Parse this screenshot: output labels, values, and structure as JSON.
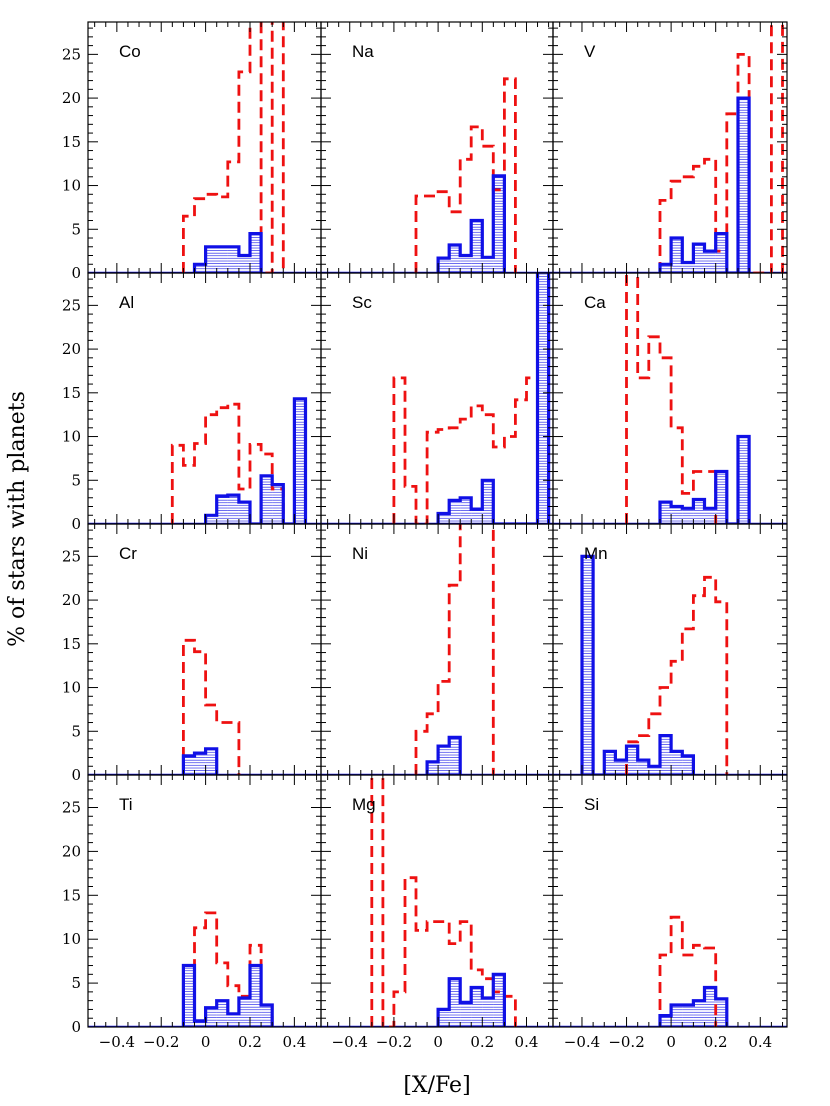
{
  "figure": {
    "xlabel": "[X/Fe]",
    "ylabel": "% of stars with planets",
    "ylim": [
      0,
      28.7
    ],
    "xlim": [
      -0.53,
      0.52
    ],
    "yticks": [
      0,
      5,
      10,
      15,
      20,
      25
    ],
    "xticks": [
      -0.4,
      -0.2,
      0,
      0.2,
      0.4
    ],
    "xtick_labels": [
      "−0.4",
      "−0.2",
      "0",
      "0.2",
      "0.4"
    ],
    "colors": {
      "planets_solid": "#1010e6",
      "planets_dashed": "#ee1111",
      "axes": "#000000"
    }
  },
  "chart_data": [
    {
      "type": "histogram",
      "label": "Co",
      "solid_bins": [
        [
          -0.05,
          0.0,
          1.0
        ],
        [
          0.0,
          0.1,
          3.0
        ],
        [
          0.1,
          0.15,
          3.0
        ],
        [
          0.15,
          0.2,
          2.0
        ],
        [
          0.2,
          0.25,
          4.5
        ]
      ],
      "dashed_bins": [
        [
          -0.1,
          -0.05,
          6.5
        ],
        [
          -0.05,
          0.0,
          8.5
        ],
        [
          0.0,
          0.05,
          9.0
        ],
        [
          0.05,
          0.1,
          8.7
        ],
        [
          0.1,
          0.15,
          12.7
        ],
        [
          0.15,
          0.2,
          23.0
        ],
        [
          0.2,
          0.25,
          30.0
        ],
        [
          0.3,
          0.35,
          30.0
        ]
      ]
    },
    {
      "type": "histogram",
      "label": "Na",
      "solid_bins": [
        [
          0.0,
          0.05,
          1.7
        ],
        [
          0.05,
          0.1,
          3.2
        ],
        [
          0.1,
          0.15,
          2.0
        ],
        [
          0.15,
          0.2,
          6.0
        ],
        [
          0.2,
          0.25,
          1.8
        ],
        [
          0.25,
          0.3,
          11.1
        ]
      ],
      "dashed_bins": [
        [
          -0.1,
          0.0,
          8.8
        ],
        [
          0.0,
          0.05,
          9.3
        ],
        [
          0.05,
          0.1,
          7.0
        ],
        [
          0.1,
          0.15,
          13.0
        ],
        [
          0.15,
          0.2,
          16.7
        ],
        [
          0.2,
          0.25,
          14.5
        ],
        [
          0.25,
          0.3,
          9.5
        ],
        [
          0.3,
          0.35,
          22.2
        ]
      ]
    },
    {
      "type": "histogram",
      "label": "V",
      "solid_bins": [
        [
          -0.05,
          0.0,
          1.0
        ],
        [
          0.0,
          0.05,
          4.0
        ],
        [
          0.05,
          0.1,
          1.2
        ],
        [
          0.1,
          0.15,
          3.3
        ],
        [
          0.15,
          0.2,
          2.5
        ],
        [
          0.2,
          0.25,
          4.5
        ],
        [
          0.3,
          0.35,
          20.0
        ]
      ],
      "dashed_bins": [
        [
          -0.05,
          0.0,
          8.3
        ],
        [
          0.0,
          0.05,
          10.5
        ],
        [
          0.05,
          0.1,
          11.0
        ],
        [
          0.1,
          0.15,
          12.2
        ],
        [
          0.15,
          0.2,
          13.0
        ],
        [
          0.2,
          0.25,
          2.5
        ],
        [
          0.25,
          0.3,
          18.2
        ],
        [
          0.3,
          0.35,
          25.0
        ],
        [
          0.45,
          0.5,
          30.0
        ]
      ]
    },
    {
      "type": "histogram",
      "label": "Al",
      "solid_bins": [
        [
          0.0,
          0.05,
          1.0
        ],
        [
          0.05,
          0.1,
          3.2
        ],
        [
          0.1,
          0.15,
          3.3
        ],
        [
          0.15,
          0.2,
          2.5
        ],
        [
          0.25,
          0.3,
          5.5
        ],
        [
          0.3,
          0.35,
          4.5
        ],
        [
          0.4,
          0.45,
          14.3
        ]
      ],
      "dashed_bins": [
        [
          -0.15,
          -0.1,
          9.0
        ],
        [
          -0.1,
          -0.05,
          6.7
        ],
        [
          -0.05,
          0.0,
          9.2
        ],
        [
          0.0,
          0.05,
          12.5
        ],
        [
          0.05,
          0.1,
          13.3
        ],
        [
          0.1,
          0.15,
          13.7
        ],
        [
          0.15,
          0.2,
          4.0
        ],
        [
          0.2,
          0.25,
          9.1
        ],
        [
          0.25,
          0.3,
          8.0
        ],
        [
          0.3,
          0.35,
          4.0
        ]
      ]
    },
    {
      "type": "histogram",
      "label": "Sc",
      "solid_bins": [
        [
          0.0,
          0.05,
          1.2
        ],
        [
          0.05,
          0.1,
          2.7
        ],
        [
          0.1,
          0.15,
          3.0
        ],
        [
          0.15,
          0.2,
          1.7
        ],
        [
          0.2,
          0.25,
          5.0
        ],
        [
          0.45,
          0.5,
          30.0
        ]
      ],
      "dashed_bins": [
        [
          -0.2,
          -0.15,
          16.7
        ],
        [
          -0.15,
          -0.1,
          4.3
        ],
        [
          -0.05,
          0.0,
          10.5
        ],
        [
          0.0,
          0.05,
          10.8
        ],
        [
          0.05,
          0.1,
          11.0
        ],
        [
          0.1,
          0.15,
          12.0
        ],
        [
          0.15,
          0.2,
          13.5
        ],
        [
          0.2,
          0.25,
          12.5
        ],
        [
          0.25,
          0.3,
          8.8
        ],
        [
          0.3,
          0.35,
          10.0
        ],
        [
          0.35,
          0.4,
          14.2
        ],
        [
          0.4,
          0.45,
          16.7
        ],
        [
          0.45,
          0.5,
          30.0
        ]
      ]
    },
    {
      "type": "histogram",
      "label": "Ca",
      "solid_bins": [
        [
          -0.05,
          0.0,
          2.5
        ],
        [
          0.0,
          0.05,
          2.0
        ],
        [
          0.05,
          0.1,
          1.8
        ],
        [
          0.1,
          0.15,
          2.8
        ],
        [
          0.15,
          0.2,
          1.8
        ],
        [
          0.2,
          0.25,
          6.0
        ],
        [
          0.3,
          0.35,
          10.0
        ]
      ],
      "dashed_bins": [
        [
          -0.2,
          -0.15,
          30.0
        ],
        [
          -0.15,
          -0.1,
          16.7
        ],
        [
          -0.1,
          -0.05,
          21.4
        ],
        [
          -0.05,
          0.0,
          19.0
        ],
        [
          0.0,
          0.05,
          11.0
        ],
        [
          0.05,
          0.1,
          3.5
        ],
        [
          0.1,
          0.15,
          6.0
        ],
        [
          0.15,
          0.2,
          6.0
        ]
      ]
    },
    {
      "type": "histogram",
      "label": "Cr",
      "solid_bins": [
        [
          -0.1,
          -0.05,
          2.2
        ],
        [
          -0.05,
          0.0,
          2.5
        ],
        [
          0.0,
          0.05,
          3.0
        ]
      ],
      "dashed_bins": [
        [
          -0.1,
          -0.05,
          15.4
        ],
        [
          -0.05,
          0.0,
          14.1
        ],
        [
          0.0,
          0.05,
          8.0
        ],
        [
          0.05,
          0.1,
          6.0
        ],
        [
          0.1,
          0.15,
          6.0
        ]
      ]
    },
    {
      "type": "histogram",
      "label": "Ni",
      "solid_bins": [
        [
          -0.05,
          0.0,
          1.5
        ],
        [
          0.0,
          0.05,
          3.3
        ],
        [
          0.05,
          0.1,
          4.3
        ]
      ],
      "dashed_bins": [
        [
          -0.1,
          -0.05,
          5.0
        ],
        [
          -0.05,
          0.0,
          7.0
        ],
        [
          0.0,
          0.05,
          10.7
        ],
        [
          0.05,
          0.1,
          21.7
        ],
        [
          0.1,
          0.15,
          30.0
        ],
        [
          0.15,
          0.2,
          30.0
        ],
        [
          0.2,
          0.25,
          30.0
        ]
      ]
    },
    {
      "type": "histogram",
      "label": "Mn",
      "solid_bins": [
        [
          -0.4,
          -0.35,
          25.0
        ],
        [
          -0.3,
          -0.25,
          2.7
        ],
        [
          -0.25,
          -0.2,
          1.7
        ],
        [
          -0.2,
          -0.15,
          3.3
        ],
        [
          -0.15,
          -0.1,
          1.7
        ],
        [
          -0.1,
          -0.05,
          1.0
        ],
        [
          -0.05,
          0.0,
          4.5
        ],
        [
          0.0,
          0.05,
          2.7
        ],
        [
          0.05,
          0.1,
          2.2
        ]
      ],
      "dashed_bins": [
        [
          -0.2,
          -0.15,
          3.8
        ],
        [
          -0.15,
          -0.1,
          4.5
        ],
        [
          -0.1,
          -0.05,
          7.0
        ],
        [
          -0.05,
          0.0,
          10.0
        ],
        [
          0.0,
          0.05,
          13.0
        ],
        [
          0.05,
          0.1,
          16.7
        ],
        [
          0.1,
          0.15,
          20.5
        ],
        [
          0.15,
          0.2,
          22.6
        ],
        [
          0.2,
          0.25,
          19.8
        ]
      ]
    },
    {
      "type": "histogram",
      "label": "Ti",
      "solid_bins": [
        [
          -0.1,
          -0.05,
          7.0
        ],
        [
          -0.05,
          0.0,
          0.7
        ],
        [
          0.0,
          0.05,
          2.2
        ],
        [
          0.05,
          0.1,
          3.0
        ],
        [
          0.1,
          0.15,
          1.5
        ],
        [
          0.15,
          0.2,
          3.3
        ],
        [
          0.2,
          0.25,
          7.0
        ],
        [
          0.25,
          0.3,
          2.5
        ]
      ],
      "dashed_bins": [
        [
          -0.1,
          -0.05,
          7.0
        ],
        [
          -0.05,
          0.0,
          11.3
        ],
        [
          0.0,
          0.05,
          13.0
        ],
        [
          0.05,
          0.1,
          7.3
        ],
        [
          0.1,
          0.15,
          4.7
        ],
        [
          0.15,
          0.2,
          3.5
        ],
        [
          0.2,
          0.25,
          9.3
        ],
        [
          0.25,
          0.3,
          2.5
        ]
      ]
    },
    {
      "type": "histogram",
      "label": "Mg",
      "solid_bins": [
        [
          0.0,
          0.05,
          2.0
        ],
        [
          0.05,
          0.1,
          5.5
        ],
        [
          0.1,
          0.15,
          2.8
        ],
        [
          0.15,
          0.2,
          4.5
        ],
        [
          0.2,
          0.25,
          3.3
        ],
        [
          0.25,
          0.3,
          6.0
        ]
      ],
      "dashed_bins": [
        [
          -0.3,
          -0.25,
          30.0
        ],
        [
          -0.2,
          -0.15,
          4.0
        ],
        [
          -0.15,
          -0.1,
          17.0
        ],
        [
          -0.1,
          -0.05,
          11.0
        ],
        [
          -0.05,
          0.0,
          12.0
        ],
        [
          0.0,
          0.05,
          12.0
        ],
        [
          0.05,
          0.1,
          9.5
        ],
        [
          0.1,
          0.15,
          12.0
        ],
        [
          0.15,
          0.2,
          6.5
        ],
        [
          0.2,
          0.25,
          5.5
        ],
        [
          0.25,
          0.3,
          4.0
        ],
        [
          0.3,
          0.35,
          3.5
        ]
      ]
    },
    {
      "type": "histogram",
      "label": "Si",
      "solid_bins": [
        [
          -0.05,
          0.0,
          1.3
        ],
        [
          0.0,
          0.05,
          2.5
        ],
        [
          0.05,
          0.1,
          2.5
        ],
        [
          0.1,
          0.15,
          3.0
        ],
        [
          0.15,
          0.2,
          4.5
        ],
        [
          0.2,
          0.25,
          3.2
        ]
      ],
      "dashed_bins": [
        [
          -0.05,
          0.0,
          8.2
        ],
        [
          0.0,
          0.05,
          12.5
        ],
        [
          0.05,
          0.1,
          8.2
        ],
        [
          0.1,
          0.15,
          9.3
        ],
        [
          0.15,
          0.2,
          9.0
        ]
      ]
    }
  ]
}
